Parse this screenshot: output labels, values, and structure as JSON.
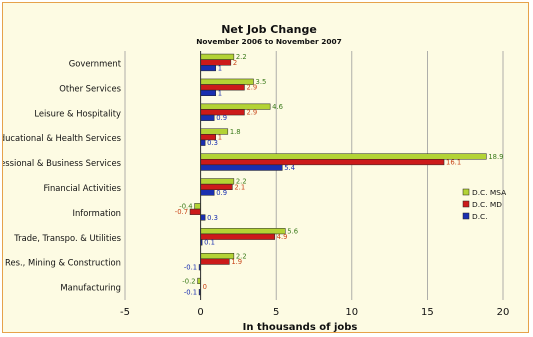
{
  "chart_data": {
    "type": "bar",
    "orientation": "horizontal",
    "title": "Net Job Change",
    "subtitle": "November 2006 to November 2007",
    "xlabel": "In thousands of jobs",
    "ylabel": "",
    "xlim": [
      -5,
      20
    ],
    "xticks": [
      -5,
      0,
      5,
      10,
      15,
      20
    ],
    "grid": true,
    "legend_position": "right",
    "categories": [
      "Government",
      "Other Services",
      "Leisure & Hospitality",
      "Educational & Health Services",
      "Professional & Business Services",
      "Financial Activities",
      "Information",
      "Trade, Transpo. & Utilities",
      "Natural Res., Mining & Construction",
      "Manufacturing"
    ],
    "series": [
      {
        "name": "D.C. MSA",
        "color": "#b3d335",
        "label_color": "#3a7a1a",
        "values": [
          2.2,
          3.5,
          4.6,
          1.8,
          18.9,
          2.2,
          -0.4,
          5.6,
          2.2,
          -0.2
        ]
      },
      {
        "name": "D.C. MD",
        "color": "#cc1a1a",
        "label_color": "#c8451a",
        "values": [
          2,
          2.9,
          2.9,
          1,
          16.1,
          2.1,
          -0.7,
          4.9,
          1.9,
          0
        ]
      },
      {
        "name": "D.C.",
        "color": "#1a2fb0",
        "label_color": "#1a2fb0",
        "values": [
          1,
          1,
          0.9,
          0.3,
          5.4,
          0.9,
          0.3,
          0.1,
          -0.1,
          -0.1
        ]
      }
    ]
  }
}
